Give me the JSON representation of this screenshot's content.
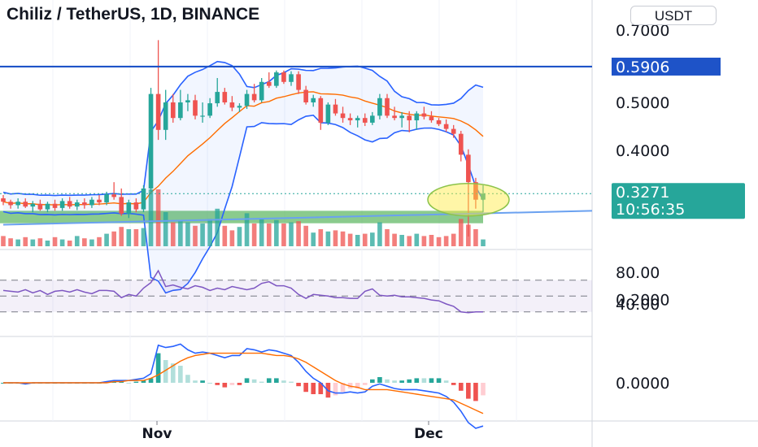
{
  "header": {
    "title": "Chiliz / TetherUS, 1D, BINANCE",
    "currency_button": "USDT"
  },
  "colors": {
    "up": "#26a69a",
    "down": "#ef5350",
    "band": "#2962ff",
    "ma": "#ff6d00",
    "rsi": "#7e57c2",
    "macd_line": "#2962ff",
    "signal_line": "#ff6d00",
    "resistance": "#1e53c8",
    "support_zone": "#4caf50",
    "highlight": "#ffeb3b",
    "price_tag": "#26a69a"
  },
  "price_axis": {
    "ticks": [
      "0.7000",
      "0.5000",
      "0.4000",
      "0.2000"
    ],
    "resistance_label": "0.5906",
    "last_price_label": "0.3271",
    "countdown_label": "10:56:35"
  },
  "rsi_axis": {
    "ticks": [
      "80.00",
      "40.00"
    ]
  },
  "macd_axis": {
    "ticks": [
      "0.0000"
    ]
  },
  "x_axis": {
    "ticks": [
      "Nov",
      "Dec"
    ]
  },
  "chart_data": {
    "type": "candlestick",
    "timeframe": "1D",
    "ylim": [
      0.18,
      0.7
    ],
    "resistance_level": 0.5906,
    "last_price": 0.3271,
    "support_zone": [
      0.285,
      0.302
    ],
    "ohlc": [
      [
        0.32,
        0.325,
        0.31,
        0.315
      ],
      [
        0.315,
        0.318,
        0.305,
        0.31
      ],
      [
        0.31,
        0.32,
        0.305,
        0.315
      ],
      [
        0.315,
        0.32,
        0.306,
        0.308
      ],
      [
        0.308,
        0.316,
        0.3,
        0.312
      ],
      [
        0.312,
        0.318,
        0.302,
        0.304
      ],
      [
        0.304,
        0.315,
        0.3,
        0.312
      ],
      [
        0.312,
        0.318,
        0.302,
        0.306
      ],
      [
        0.306,
        0.32,
        0.302,
        0.316
      ],
      [
        0.316,
        0.322,
        0.305,
        0.308
      ],
      [
        0.308,
        0.318,
        0.303,
        0.314
      ],
      [
        0.314,
        0.32,
        0.305,
        0.31
      ],
      [
        0.31,
        0.322,
        0.306,
        0.318
      ],
      [
        0.318,
        0.325,
        0.31,
        0.314
      ],
      [
        0.314,
        0.33,
        0.31,
        0.326
      ],
      [
        0.326,
        0.345,
        0.318,
        0.322
      ],
      [
        0.322,
        0.335,
        0.295,
        0.298
      ],
      [
        0.298,
        0.318,
        0.292,
        0.314
      ],
      [
        0.314,
        0.32,
        0.3,
        0.304
      ],
      [
        0.304,
        0.34,
        0.3,
        0.335
      ],
      [
        0.335,
        0.535,
        0.33,
        0.52
      ],
      [
        0.52,
        0.668,
        0.42,
        0.44
      ],
      [
        0.44,
        0.53,
        0.42,
        0.5
      ],
      [
        0.5,
        0.52,
        0.455,
        0.465
      ],
      [
        0.465,
        0.53,
        0.46,
        0.5
      ],
      [
        0.5,
        0.52,
        0.48,
        0.505
      ],
      [
        0.505,
        0.518,
        0.462,
        0.47
      ],
      [
        0.47,
        0.5,
        0.455,
        0.47
      ],
      [
        0.47,
        0.51,
        0.465,
        0.498
      ],
      [
        0.498,
        0.56,
        0.49,
        0.525
      ],
      [
        0.525,
        0.535,
        0.495,
        0.5
      ],
      [
        0.5,
        0.515,
        0.48,
        0.488
      ],
      [
        0.488,
        0.498,
        0.478,
        0.492
      ],
      [
        0.492,
        0.53,
        0.485,
        0.52
      ],
      [
        0.52,
        0.545,
        0.5,
        0.505
      ],
      [
        0.505,
        0.56,
        0.5,
        0.55
      ],
      [
        0.55,
        0.575,
        0.535,
        0.54
      ],
      [
        0.54,
        0.58,
        0.535,
        0.575
      ],
      [
        0.575,
        0.58,
        0.545,
        0.55
      ],
      [
        0.55,
        0.578,
        0.54,
        0.57
      ],
      [
        0.57,
        0.578,
        0.52,
        0.53
      ],
      [
        0.53,
        0.54,
        0.495,
        0.5
      ],
      [
        0.5,
        0.518,
        0.49,
        0.51
      ],
      [
        0.51,
        0.515,
        0.44,
        0.455
      ],
      [
        0.455,
        0.5,
        0.45,
        0.495
      ],
      [
        0.495,
        0.508,
        0.47,
        0.475
      ],
      [
        0.475,
        0.49,
        0.455,
        0.465
      ],
      [
        0.465,
        0.475,
        0.45,
        0.46
      ],
      [
        0.46,
        0.47,
        0.445,
        0.465
      ],
      [
        0.465,
        0.475,
        0.448,
        0.455
      ],
      [
        0.455,
        0.478,
        0.45,
        0.47
      ],
      [
        0.47,
        0.52,
        0.462,
        0.51
      ],
      [
        0.51,
        0.52,
        0.465,
        0.47
      ],
      [
        0.47,
        0.49,
        0.46,
        0.465
      ],
      [
        0.465,
        0.478,
        0.445,
        0.47
      ],
      [
        0.47,
        0.48,
        0.435,
        0.46
      ],
      [
        0.46,
        0.48,
        0.44,
        0.475
      ],
      [
        0.475,
        0.49,
        0.462,
        0.468
      ],
      [
        0.468,
        0.48,
        0.455,
        0.46
      ],
      [
        0.46,
        0.465,
        0.448,
        0.452
      ],
      [
        0.452,
        0.462,
        0.436,
        0.442
      ],
      [
        0.442,
        0.45,
        0.424,
        0.432
      ],
      [
        0.432,
        0.438,
        0.38,
        0.392
      ],
      [
        0.392,
        0.402,
        0.268,
        0.345
      ],
      [
        0.345,
        0.352,
        0.305,
        0.318
      ],
      [
        0.318,
        0.34,
        0.3,
        0.327
      ]
    ],
    "volume": [
      0.18,
      0.14,
      0.12,
      0.16,
      0.12,
      0.14,
      0.1,
      0.16,
      0.12,
      0.1,
      0.18,
      0.14,
      0.12,
      0.16,
      0.22,
      0.26,
      0.34,
      0.3,
      0.3,
      0.32,
      1.0,
      1.0,
      0.6,
      0.42,
      0.44,
      0.42,
      0.36,
      0.4,
      0.48,
      0.66,
      0.36,
      0.28,
      0.34,
      0.58,
      0.4,
      0.48,
      0.4,
      0.46,
      0.4,
      0.42,
      0.44,
      0.36,
      0.24,
      0.3,
      0.26,
      0.28,
      0.26,
      0.22,
      0.2,
      0.22,
      0.24,
      0.42,
      0.3,
      0.22,
      0.2,
      0.18,
      0.22,
      0.18,
      0.2,
      0.16,
      0.18,
      0.22,
      0.48,
      0.38,
      0.3,
      0.12
    ],
    "rsi": [
      57,
      56,
      55,
      58,
      54,
      57,
      52,
      56,
      57,
      55,
      58,
      55,
      53,
      57,
      57,
      56,
      48,
      52,
      50,
      60,
      67,
      82,
      62,
      64,
      61,
      59,
      63,
      61,
      57,
      60,
      58,
      62,
      60,
      58,
      60,
      66,
      68,
      63,
      63,
      60,
      52,
      47,
      52,
      51,
      50,
      48,
      48,
      47,
      47,
      56,
      59,
      51,
      50,
      51,
      49,
      49,
      48,
      47,
      45,
      44,
      40,
      37,
      30,
      29,
      30,
      30
    ],
    "rsi_band": [
      30,
      70
    ],
    "macd": [
      0.0,
      0.0,
      0.0,
      -0.001,
      0.0,
      0.0,
      0.0,
      0.0,
      0.0,
      0.0,
      0.0,
      0.0,
      0.0,
      0.0,
      0.001,
      0.002,
      0.002,
      0.002,
      0.003,
      0.004,
      0.008,
      0.033,
      0.031,
      0.032,
      0.034,
      0.029,
      0.026,
      0.027,
      0.026,
      0.024,
      0.022,
      0.024,
      0.024,
      0.03,
      0.029,
      0.027,
      0.029,
      0.028,
      0.026,
      0.024,
      0.018,
      0.01,
      0.004,
      0.0,
      -0.007,
      -0.009,
      -0.009,
      -0.008,
      -0.009,
      -0.008,
      -0.003,
      -0.001,
      -0.003,
      -0.005,
      -0.006,
      -0.006,
      -0.006,
      -0.007,
      -0.008,
      -0.009,
      -0.012,
      -0.017,
      -0.025,
      -0.035,
      -0.04,
      -0.038
    ],
    "signal": [
      0.0,
      0.0,
      0.0,
      0.0,
      0.0,
      0.0,
      0.0,
      0.0,
      0.0,
      0.0,
      0.0,
      0.0,
      0.0,
      0.0,
      0.0,
      0.001,
      0.001,
      0.002,
      0.002,
      0.002,
      0.004,
      0.007,
      0.011,
      0.015,
      0.019,
      0.022,
      0.024,
      0.025,
      0.026,
      0.026,
      0.026,
      0.026,
      0.026,
      0.026,
      0.026,
      0.026,
      0.025,
      0.024,
      0.024,
      0.023,
      0.021,
      0.018,
      0.014,
      0.01,
      0.006,
      0.002,
      -0.001,
      -0.003,
      -0.004,
      -0.006,
      -0.006,
      -0.006,
      -0.006,
      -0.007,
      -0.008,
      -0.009,
      -0.01,
      -0.011,
      -0.012,
      -0.013,
      -0.014,
      -0.015,
      -0.018,
      -0.021,
      -0.024,
      -0.027
    ]
  }
}
